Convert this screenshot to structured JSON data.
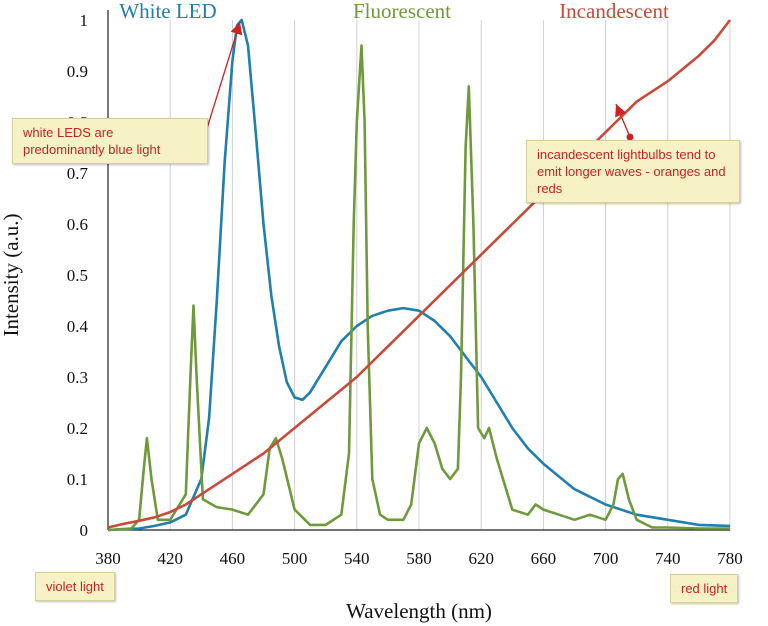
{
  "chart_data": {
    "type": "line",
    "xlabel": "Wavelength (nm)",
    "ylabel": "Intensity (a.u.)",
    "xlim": [
      380,
      780
    ],
    "ylim": [
      0,
      1
    ],
    "x_ticks": [
      "380",
      "420",
      "460",
      "500",
      "540",
      "580",
      "620",
      "660",
      "700",
      "740",
      "780"
    ],
    "y_ticks": [
      "0",
      "0.1",
      "0.2",
      "0.3",
      "0.4",
      "0.5",
      "0.6",
      "0.7",
      "0.8",
      "0.9",
      "1"
    ],
    "grid": "vertical",
    "series": [
      {
        "name": "White LED",
        "color": "#1f7fae",
        "x": [
          380,
          400,
          410,
          420,
          430,
          440,
          445,
          450,
          455,
          460,
          463,
          466,
          470,
          475,
          480,
          485,
          490,
          495,
          500,
          505,
          510,
          520,
          530,
          540,
          550,
          560,
          570,
          580,
          590,
          600,
          610,
          620,
          630,
          640,
          650,
          660,
          680,
          700,
          720,
          740,
          760,
          780
        ],
        "y": [
          0,
          0.003,
          0.008,
          0.015,
          0.03,
          0.1,
          0.22,
          0.45,
          0.72,
          0.92,
          0.99,
          1.0,
          0.95,
          0.78,
          0.6,
          0.46,
          0.36,
          0.29,
          0.26,
          0.255,
          0.27,
          0.32,
          0.37,
          0.4,
          0.42,
          0.43,
          0.435,
          0.43,
          0.41,
          0.38,
          0.34,
          0.3,
          0.25,
          0.2,
          0.16,
          0.13,
          0.08,
          0.05,
          0.03,
          0.02,
          0.01,
          0.008
        ]
      },
      {
        "name": "Fluorescent",
        "color": "#6f9a3c",
        "x": [
          380,
          395,
          400,
          403,
          405,
          408,
          412,
          420,
          430,
          433,
          435,
          437,
          441,
          450,
          460,
          470,
          480,
          484,
          488,
          492,
          500,
          510,
          520,
          530,
          535,
          538,
          540,
          543,
          545,
          547,
          550,
          555,
          560,
          570,
          575,
          580,
          585,
          590,
          595,
          600,
          605,
          607,
          610,
          612,
          615,
          618,
          622,
          625,
          630,
          640,
          650,
          655,
          660,
          670,
          680,
          690,
          700,
          705,
          708,
          711,
          715,
          720,
          730,
          740,
          760,
          780
        ],
        "y": [
          0,
          0.003,
          0.02,
          0.12,
          0.18,
          0.1,
          0.02,
          0.02,
          0.07,
          0.3,
          0.44,
          0.3,
          0.06,
          0.045,
          0.04,
          0.03,
          0.07,
          0.16,
          0.18,
          0.14,
          0.04,
          0.01,
          0.01,
          0.03,
          0.15,
          0.6,
          0.8,
          0.95,
          0.8,
          0.4,
          0.1,
          0.03,
          0.02,
          0.02,
          0.05,
          0.17,
          0.2,
          0.17,
          0.12,
          0.1,
          0.12,
          0.3,
          0.75,
          0.87,
          0.6,
          0.2,
          0.18,
          0.2,
          0.14,
          0.04,
          0.03,
          0.05,
          0.04,
          0.03,
          0.02,
          0.03,
          0.02,
          0.05,
          0.1,
          0.11,
          0.06,
          0.02,
          0.005,
          0.005,
          0.003,
          0.003
        ]
      },
      {
        "name": "Incandescent",
        "color": "#c84a3a",
        "x": [
          380,
          390,
          400,
          410,
          420,
          430,
          440,
          460,
          480,
          500,
          520,
          540,
          560,
          580,
          600,
          620,
          640,
          660,
          680,
          700,
          720,
          740,
          760,
          770,
          780
        ],
        "y": [
          0.005,
          0.012,
          0.018,
          0.025,
          0.035,
          0.05,
          0.07,
          0.11,
          0.15,
          0.2,
          0.25,
          0.3,
          0.36,
          0.42,
          0.48,
          0.54,
          0.6,
          0.66,
          0.72,
          0.78,
          0.84,
          0.88,
          0.93,
          0.96,
          1.0
        ]
      }
    ]
  },
  "annotations": {
    "white_led_note": "white LEDS are predominantly blue light",
    "incandescent_note": "incandescent lightbulbs tend to emit longer waves - oranges and reds",
    "violet_label": "violet light",
    "red_label": "red light"
  },
  "colors": {
    "note_text": "#cc2222",
    "arrow": "#cc2222",
    "note_bg": "#f7f2c6"
  }
}
